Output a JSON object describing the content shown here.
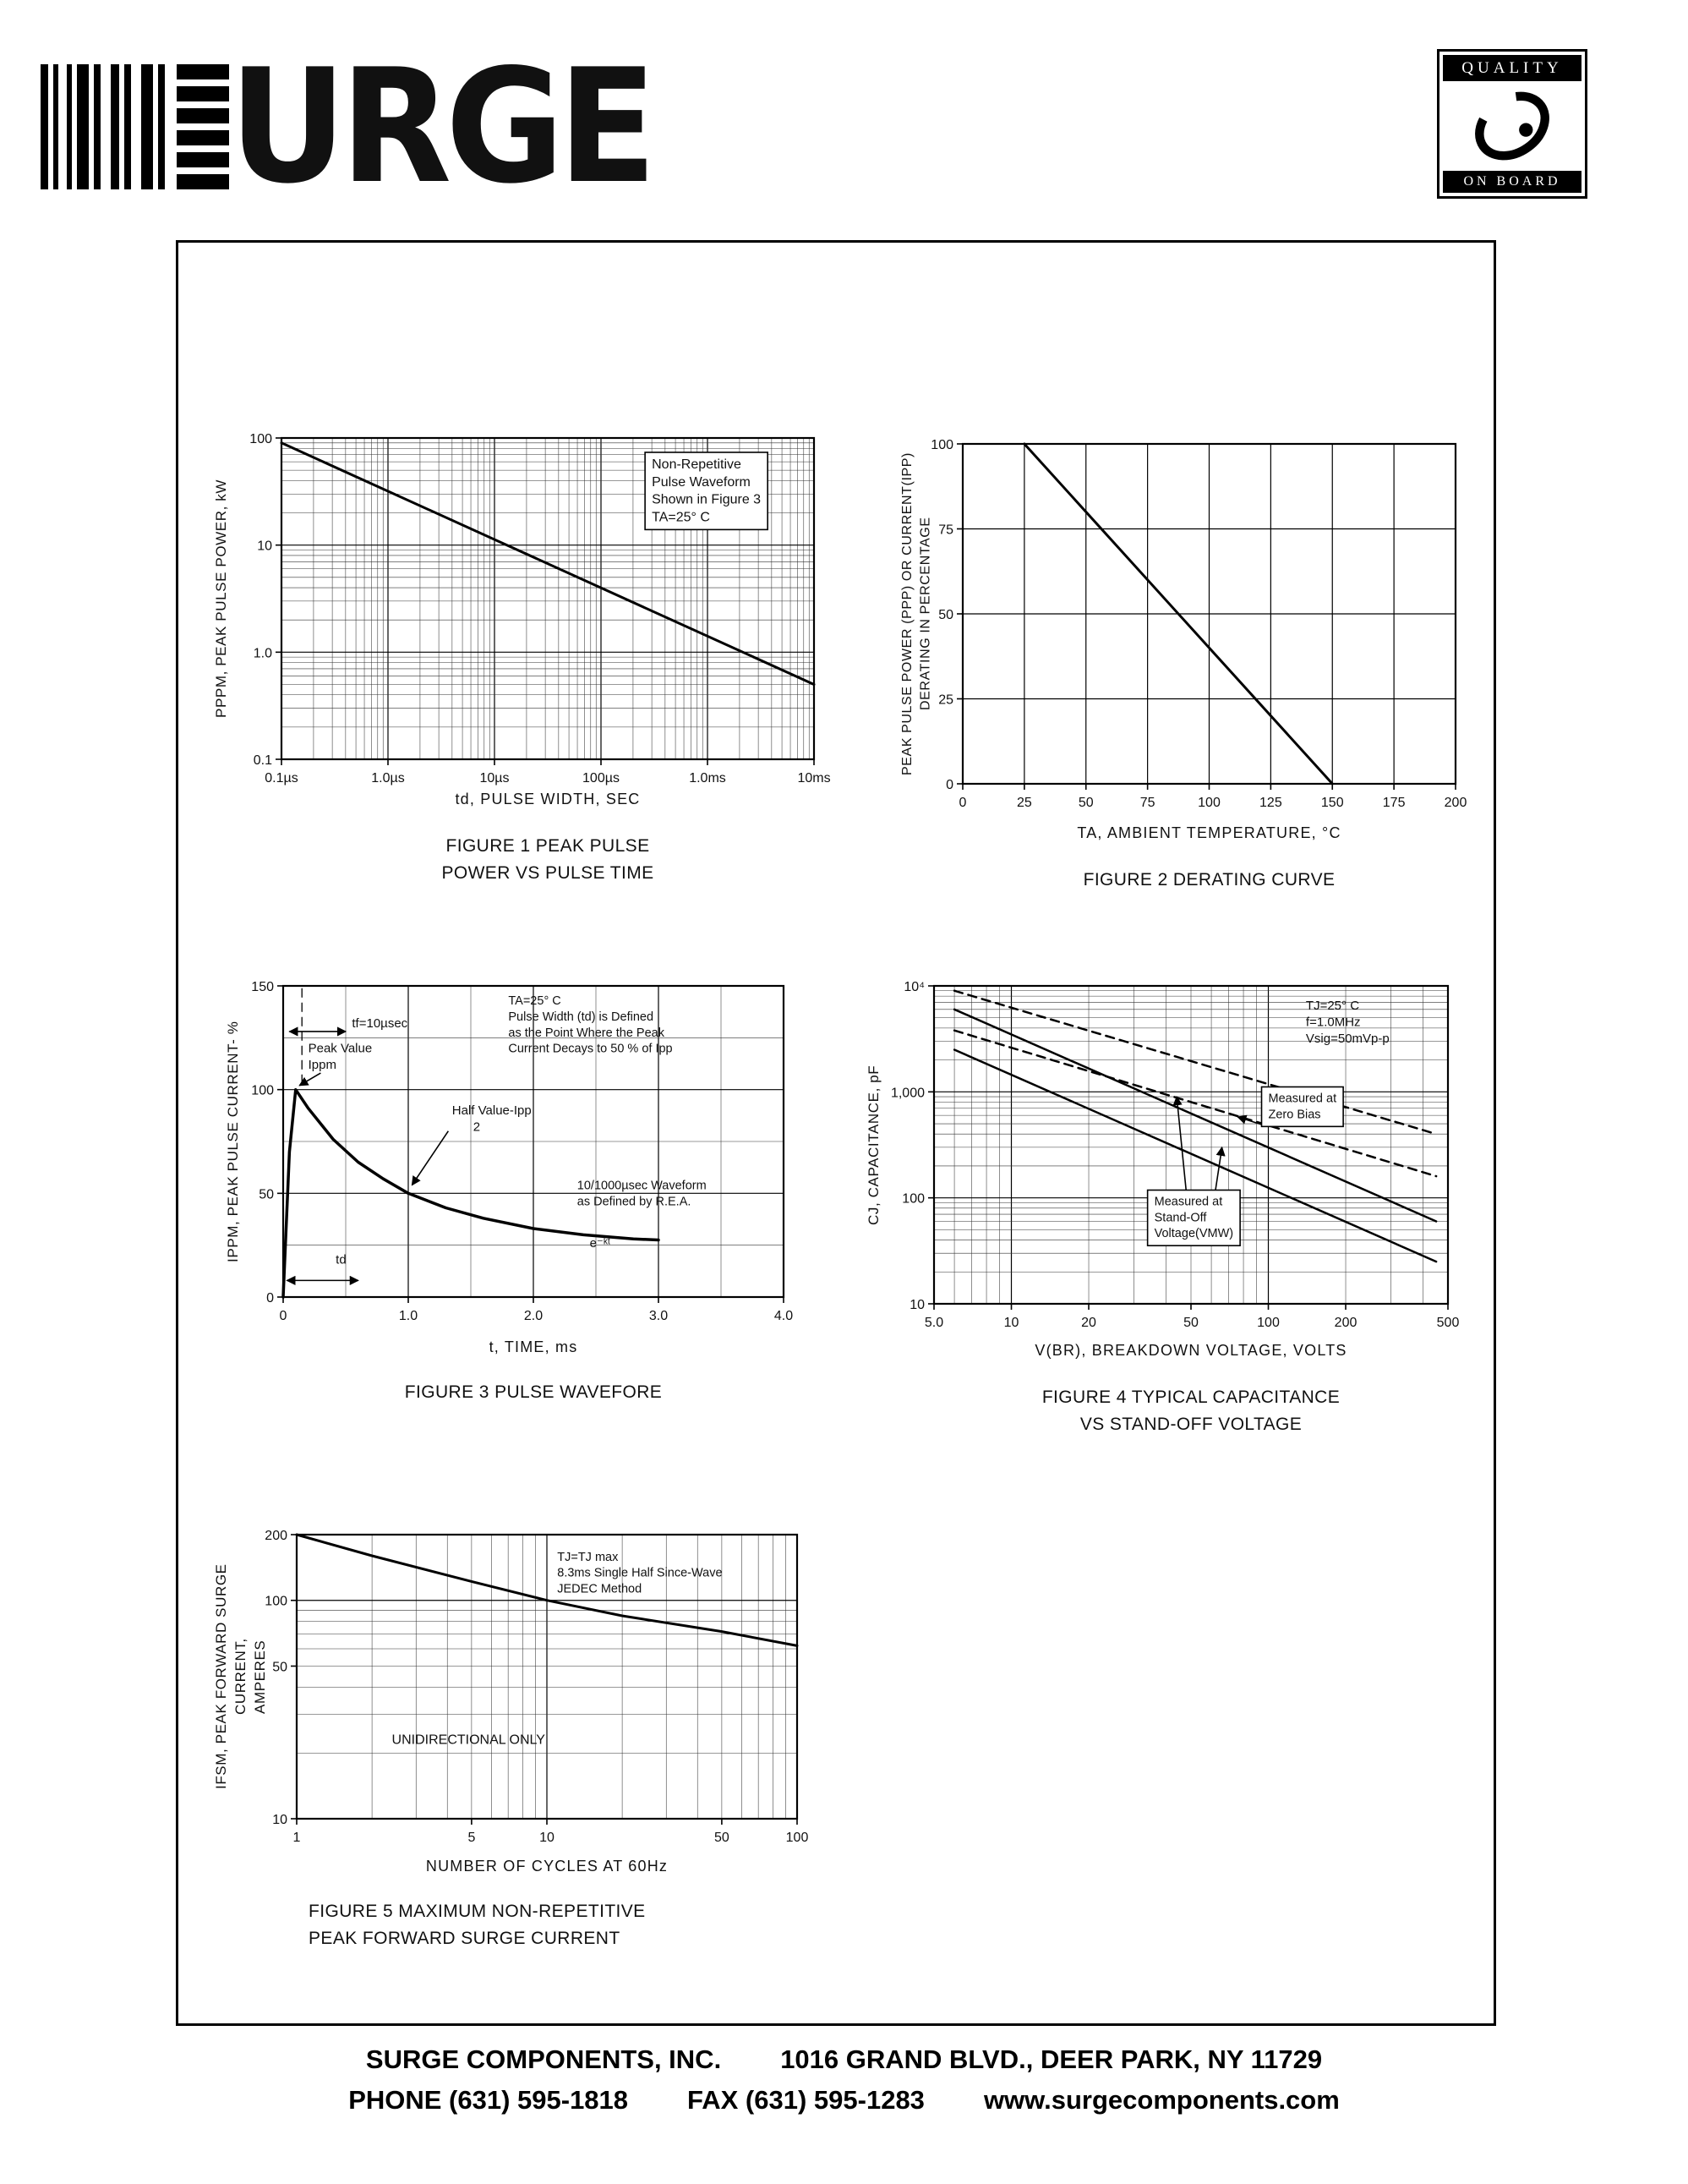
{
  "header": {
    "logo_text": "URGE",
    "badge_top": "QUALITY",
    "badge_bottom": "ON BOARD"
  },
  "footer": {
    "company": "SURGE COMPONENTS, INC.",
    "address": "1016 GRAND BLVD., DEER PARK, NY  11729",
    "phone": "PHONE (631) 595-1818",
    "fax": "FAX (631) 595-1283",
    "website": "www.surgecomponents.com"
  },
  "chart_data": [
    {
      "type": "line",
      "caption1": "FIGURE 1 PEAK PULSE",
      "caption2": "POWER VS PULSE TIME",
      "xlabel": "td, PULSE WIDTH, SEC",
      "ylabel": "PPPM, PEAK PULSE POWER, kW",
      "x": {
        "type": "log",
        "min": 1e-07,
        "max": 0.01,
        "ticks": [
          {
            "v": 1e-07,
            "l": "0.1µs"
          },
          {
            "v": 1e-06,
            "l": "1.0µs"
          },
          {
            "v": 1e-05,
            "l": "10µs"
          },
          {
            "v": 0.0001,
            "l": "100µs"
          },
          {
            "v": 0.001,
            "l": "1.0ms"
          },
          {
            "v": 0.01,
            "l": "10ms"
          }
        ]
      },
      "y": {
        "type": "log",
        "min": 0.1,
        "max": 100,
        "ticks": [
          {
            "v": 0.1,
            "l": "0.1"
          },
          {
            "v": 1,
            "l": "1.0"
          },
          {
            "v": 10,
            "l": "10"
          },
          {
            "v": 100,
            "l": "100"
          }
        ]
      },
      "series": [
        {
          "name": "peak-pulse-power",
          "points": [
            [
              1e-07,
              90
            ],
            [
              0.01,
              0.5
            ]
          ],
          "width": 3
        }
      ],
      "annotations": [
        {
          "at": [
            0.0003,
            52
          ],
          "text": "Non-Repetitive\nPulse Waveform\nShown in Figure 3\nTA=25° C",
          "box": true,
          "fs": 16
        }
      ]
    },
    {
      "type": "line",
      "caption1": "FIGURE 2 DERATING CURVE",
      "caption2": "",
      "xlabel": "TA, AMBIENT  TEMPERATURE, °C",
      "ylabel": "PEAK PULSE POWER (PPP) OR CURRENT(IPP)\nDERATING IN PERCENTAGE",
      "x": {
        "type": "linear",
        "min": 0,
        "max": 200,
        "minor": 25,
        "ticks": [
          {
            "v": 0,
            "l": "0"
          },
          {
            "v": 25,
            "l": "25"
          },
          {
            "v": 50,
            "l": "50"
          },
          {
            "v": 75,
            "l": "75"
          },
          {
            "v": 100,
            "l": "100"
          },
          {
            "v": 125,
            "l": "125"
          },
          {
            "v": 150,
            "l": "150"
          },
          {
            "v": 175,
            "l": "175"
          },
          {
            "v": 200,
            "l": "200"
          }
        ]
      },
      "y": {
        "type": "linear",
        "min": 0,
        "max": 100,
        "minor": 25,
        "ticks": [
          {
            "v": 0,
            "l": "0"
          },
          {
            "v": 25,
            "l": "25"
          },
          {
            "v": 50,
            "l": "50"
          },
          {
            "v": 75,
            "l": "75"
          },
          {
            "v": 100,
            "l": "100"
          }
        ]
      },
      "series": [
        {
          "name": "derating",
          "points": [
            [
              25,
              100
            ],
            [
              150,
              0
            ]
          ],
          "width": 3
        }
      ],
      "annotations": []
    },
    {
      "type": "line",
      "caption1": "FIGURE 3 PULSE WAVEFORE",
      "caption2": "",
      "xlabel": "t, TIME, ms",
      "ylabel": "IPPM, PEAK PULSE CURRENT- %",
      "x": {
        "type": "linear",
        "min": 0,
        "max": 4,
        "minor": 0.5,
        "majorEvery": 2,
        "ticks": [
          {
            "v": 0,
            "l": "0"
          },
          {
            "v": 1,
            "l": "1.0"
          },
          {
            "v": 2,
            "l": "2.0"
          },
          {
            "v": 3,
            "l": "3.0"
          },
          {
            "v": 4,
            "l": "4.0"
          }
        ]
      },
      "y": {
        "type": "linear",
        "min": 0,
        "max": 150,
        "minor": 25,
        "majorEvery": 2,
        "ticks": [
          {
            "v": 0,
            "l": "0"
          },
          {
            "v": 50,
            "l": "50"
          },
          {
            "v": 100,
            "l": "100"
          },
          {
            "v": 150,
            "l": "150"
          }
        ]
      },
      "series": [
        {
          "name": "pulse-waveform",
          "points": [
            [
              0,
              0
            ],
            [
              0.05,
              70
            ],
            [
              0.1,
              100
            ],
            [
              0.2,
              91
            ],
            [
              0.4,
              76
            ],
            [
              0.6,
              65
            ],
            [
              0.8,
              57
            ],
            [
              1,
              50
            ],
            [
              1.3,
              43
            ],
            [
              1.6,
              38
            ],
            [
              2,
              33
            ],
            [
              2.4,
              30
            ],
            [
              2.8,
              28
            ],
            [
              3,
              27.5
            ]
          ],
          "width": 3.5
        },
        {
          "name": "rise-time-guide",
          "points": [
            [
              0.15,
              103
            ],
            [
              0.15,
              150
            ]
          ],
          "dash": true,
          "width": 1.3
        }
      ],
      "annotations": [
        {
          "at": [
            0.55,
            130
          ],
          "text": "tf=10µsec",
          "fs": 15
        },
        {
          "at": [
            0.2,
            118
          ],
          "text": "Peak Value\nIppm",
          "fs": 15
        },
        {
          "at": [
            1.35,
            88
          ],
          "text": "Half Value-Ipp\n      2",
          "fs": 15
        },
        {
          "at": [
            1.8,
            141
          ],
          "text": "TA=25° C\nPulse Width (td) is Defined\nas the Point Where the Peak\nCurrent Decays to 50 % of Ipp",
          "fs": 14.5
        },
        {
          "at": [
            2.35,
            52
          ],
          "text": "10/1000µsec Waveform\nas Defined by R.E.A.",
          "fs": 14.5
        },
        {
          "at": [
            2.45,
            24
          ],
          "text": "e⁻ᵏᵗ",
          "fs": 15
        },
        {
          "at": [
            0.42,
            16
          ],
          "text": "td",
          "fs": 15
        }
      ],
      "leaders": [
        {
          "from": [
            0.5,
            128
          ],
          "to": [
            0.05,
            128
          ],
          "arrows": 2
        },
        {
          "from": [
            0.3,
            108
          ],
          "to": [
            0.13,
            102
          ],
          "arrows": 1
        },
        {
          "from": [
            1.32,
            80
          ],
          "to": [
            1.03,
            54
          ],
          "arrows": 1
        },
        {
          "from": [
            0.03,
            8
          ],
          "to": [
            0.6,
            8
          ],
          "arrows": 2
        }
      ]
    },
    {
      "type": "line",
      "caption1": "FIGURE 4 TYPICAL CAPACITANCE",
      "caption2": "VS STAND-OFF VOLTAGE",
      "xlabel": "V(BR), BREAKDOWN  VOLTAGE, VOLTS",
      "ylabel": "CJ, CAPACITANCE, pF",
      "x": {
        "type": "log",
        "min": 5,
        "max": 500,
        "ticks": [
          {
            "v": 5,
            "l": "5.0"
          },
          {
            "v": 10,
            "l": "10"
          },
          {
            "v": 20,
            "l": "20"
          },
          {
            "v": 50,
            "l": "50"
          },
          {
            "v": 100,
            "l": "100"
          },
          {
            "v": 200,
            "l": "200"
          },
          {
            "v": 500,
            "l": "500"
          }
        ]
      },
      "y": {
        "type": "log",
        "min": 10,
        "max": 10000,
        "ticks": [
          {
            "v": 10,
            "l": "10"
          },
          {
            "v": 100,
            "l": "100"
          },
          {
            "v": 1000,
            "l": "1,000"
          },
          {
            "v": 10000,
            "l": "10⁴"
          }
        ]
      },
      "series": [
        {
          "name": "zero-bias-upper",
          "points": [
            [
              6,
              9000
            ],
            [
              450,
              400
            ]
          ],
          "dash": true,
          "width": 2.5
        },
        {
          "name": "zero-bias-lower",
          "points": [
            [
              6,
              3800
            ],
            [
              450,
              160
            ]
          ],
          "dash": true,
          "width": 2.5
        },
        {
          "name": "stand-off-upper",
          "points": [
            [
              6,
              6000
            ],
            [
              450,
              60
            ]
          ],
          "width": 2.5
        },
        {
          "name": "stand-off-lower",
          "points": [
            [
              6,
              2500
            ],
            [
              450,
              25
            ]
          ],
          "width": 2.5
        }
      ],
      "annotations": [
        {
          "at": [
            140,
            6000
          ],
          "text": "TJ=25° C\nf=1.0MHz\nVsig=50mVp-p",
          "fs": 15
        },
        {
          "at": [
            100,
            800
          ],
          "text": "Measured at\nZero Bias",
          "box": true,
          "fs": 14.5
        },
        {
          "at": [
            36,
            85
          ],
          "text": "Measured at\nStand-Off\nVoltage(VMW)",
          "box": true,
          "fs": 14.5
        }
      ],
      "leaders": [
        {
          "from": [
            97,
            480
          ],
          "to": [
            76,
            580
          ],
          "arrows": 1
        },
        {
          "from": [
            48,
            110
          ],
          "to": [
            44,
            900
          ],
          "arrows": 1
        },
        {
          "from": [
            62,
            110
          ],
          "to": [
            66,
            300
          ],
          "arrows": 1
        }
      ]
    },
    {
      "type": "line",
      "caption1": "FIGURE 5 MAXIMUM NON-REPETITIVE",
      "caption2": "PEAK FORWARD SURGE CURRENT",
      "xlabel": "NUMBER  OF  CYCLES  AT  60Hz",
      "ylabel": "IFSM, PEAK FORWARD SURGE CURRENT,\nAMPERES",
      "x": {
        "type": "log",
        "min": 1,
        "max": 100,
        "ticks": [
          {
            "v": 1,
            "l": "1"
          },
          {
            "v": 5,
            "l": "5"
          },
          {
            "v": 10,
            "l": "10"
          },
          {
            "v": 50,
            "l": "50"
          },
          {
            "v": 100,
            "l": "100"
          }
        ]
      },
      "y": {
        "type": "log",
        "min": 10,
        "max": 200,
        "ticks": [
          {
            "v": 10,
            "l": "10"
          },
          {
            "v": 50,
            "l": "50"
          },
          {
            "v": 100,
            "l": "100"
          },
          {
            "v": 200,
            "l": "200"
          }
        ]
      },
      "series": [
        {
          "name": "surge-current",
          "points": [
            [
              1,
              200
            ],
            [
              2,
              160
            ],
            [
              5,
              122
            ],
            [
              10,
              100
            ],
            [
              20,
              85
            ],
            [
              50,
              72
            ],
            [
              100,
              62
            ]
          ],
          "width": 3
        }
      ],
      "annotations": [
        {
          "at": [
            11,
            152
          ],
          "text": "TJ=TJ max\n8.3ms Single Half Since-Wave\nJEDEC Method",
          "fs": 14.5
        },
        {
          "at": [
            2.4,
            22
          ],
          "text": "UNIDIRECTIONAL ONLY",
          "fs": 16
        }
      ]
    }
  ]
}
